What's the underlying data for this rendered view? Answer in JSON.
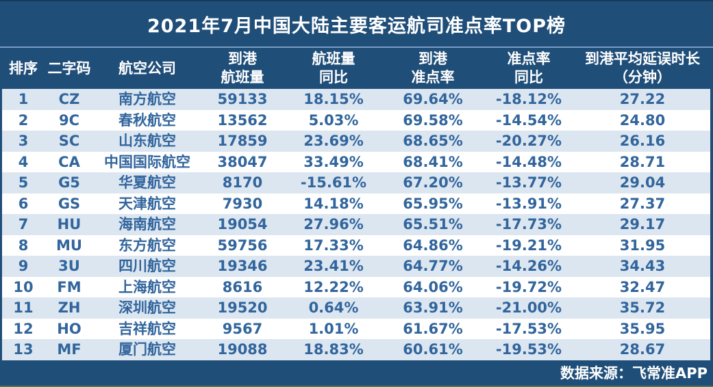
{
  "title": "2021年7月中国大陆主要客运航司准点率TOP榜",
  "source_note": "数据来源：飞常准APP",
  "colors": {
    "page_background": "#1F4E79",
    "banded_row": "#DCE6F1",
    "plain_row": "#FFFFFF",
    "data_text": "#31659C",
    "header_text": "#FFFFFF",
    "title_divider": "#7B9CC4",
    "bottom_edge_line": "#4E7A52"
  },
  "table": {
    "headers": [
      [
        "排序"
      ],
      [
        "二字码"
      ],
      [
        "航空公司"
      ],
      [
        "到港",
        "航班量"
      ],
      [
        "航班量",
        "同比"
      ],
      [
        "到港",
        "准点率"
      ],
      [
        "准点率",
        "同比"
      ],
      [
        "到港平均延误时长",
        "（分钟）"
      ]
    ]
  },
  "chart_data": {
    "type": "table",
    "title": "2021年7月中国大陆主要客运航司准点率TOP榜",
    "columns": [
      "排序",
      "二字码",
      "航空公司",
      "到港航班量",
      "航班量同比",
      "到港准点率",
      "准点率同比",
      "到港平均延误时长（分钟）"
    ],
    "rows": [
      [
        "1",
        "CZ",
        "南方航空",
        "59133",
        "18.15%",
        "69.64%",
        "-18.12%",
        "27.22"
      ],
      [
        "2",
        "9C",
        "春秋航空",
        "13562",
        "5.03%",
        "69.58%",
        "-14.54%",
        "24.80"
      ],
      [
        "3",
        "SC",
        "山东航空",
        "17859",
        "23.69%",
        "68.65%",
        "-20.27%",
        "26.16"
      ],
      [
        "4",
        "CA",
        "中国国际航空",
        "38047",
        "33.49%",
        "68.41%",
        "-14.48%",
        "28.71"
      ],
      [
        "5",
        "G5",
        "华夏航空",
        "8170",
        "-15.61%",
        "67.20%",
        "-13.77%",
        "29.04"
      ],
      [
        "6",
        "GS",
        "天津航空",
        "7930",
        "14.18%",
        "65.95%",
        "-13.91%",
        "27.37"
      ],
      [
        "7",
        "HU",
        "海南航空",
        "19054",
        "27.96%",
        "65.51%",
        "-17.73%",
        "29.17"
      ],
      [
        "8",
        "MU",
        "东方航空",
        "59756",
        "17.33%",
        "64.86%",
        "-19.21%",
        "31.95"
      ],
      [
        "9",
        "3U",
        "四川航空",
        "19346",
        "23.41%",
        "64.77%",
        "-14.26%",
        "34.43"
      ],
      [
        "10",
        "FM",
        "上海航空",
        "8616",
        "12.22%",
        "64.06%",
        "-19.72%",
        "32.47"
      ],
      [
        "11",
        "ZH",
        "深圳航空",
        "19520",
        "0.64%",
        "63.91%",
        "-21.00%",
        "35.72"
      ],
      [
        "12",
        "HO",
        "吉祥航空",
        "9567",
        "1.01%",
        "61.67%",
        "-17.53%",
        "35.95"
      ],
      [
        "13",
        "MF",
        "厦门航空",
        "19088",
        "18.83%",
        "60.61%",
        "-19.53%",
        "28.67"
      ]
    ]
  }
}
